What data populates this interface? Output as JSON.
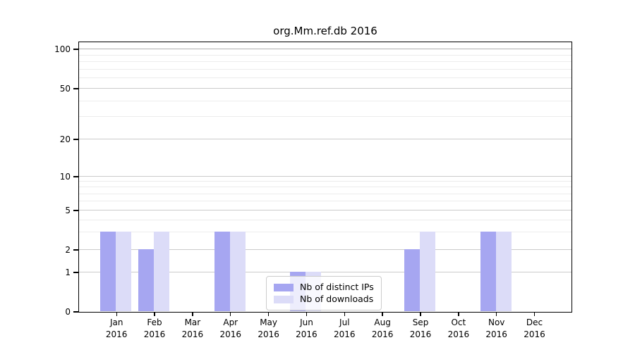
{
  "figure": {
    "title": "org.Mm.ref.db 2016"
  },
  "chart_data": {
    "type": "bar",
    "title": "org.Mm.ref.db 2016",
    "categories": [
      "Jan 2016",
      "Feb 2016",
      "Mar 2016",
      "Apr 2016",
      "May 2016",
      "Jun 2016",
      "Jul 2016",
      "Aug 2016",
      "Sep 2016",
      "Oct 2016",
      "Nov 2016",
      "Dec 2016"
    ],
    "series": [
      {
        "name": "Nb of distinct IPs",
        "color": "#a6a6f1",
        "values": [
          3,
          2,
          0,
          3,
          0,
          1,
          0,
          0,
          2,
          0,
          3,
          0
        ]
      },
      {
        "name": "Nb of downloads",
        "color": "#dcdcf8",
        "values": [
          3,
          3,
          0,
          3,
          0,
          1,
          0,
          0,
          3,
          0,
          3,
          0
        ]
      }
    ],
    "xlabel": "",
    "ylabel": "",
    "yscale": "symlog",
    "ylim": [
      0,
      100
    ],
    "ytick_labels": [
      "0",
      "1",
      "2",
      "5",
      "10",
      "20",
      "50",
      "100"
    ],
    "ytick_values": [
      0,
      1,
      2,
      5,
      10,
      20,
      50,
      100
    ],
    "yminor_values": [
      3,
      4,
      6,
      7,
      8,
      9,
      30,
      40,
      60,
      70,
      80,
      90
    ],
    "grid": "on",
    "legend_position": "lower center-left, inside plot",
    "colors": {
      "major_grid": "#cbcbcb",
      "minor_grid": "#ececec",
      "top_grid": "#b0b0b0",
      "axis": "#000000",
      "legend_border": "#cccccc"
    }
  }
}
